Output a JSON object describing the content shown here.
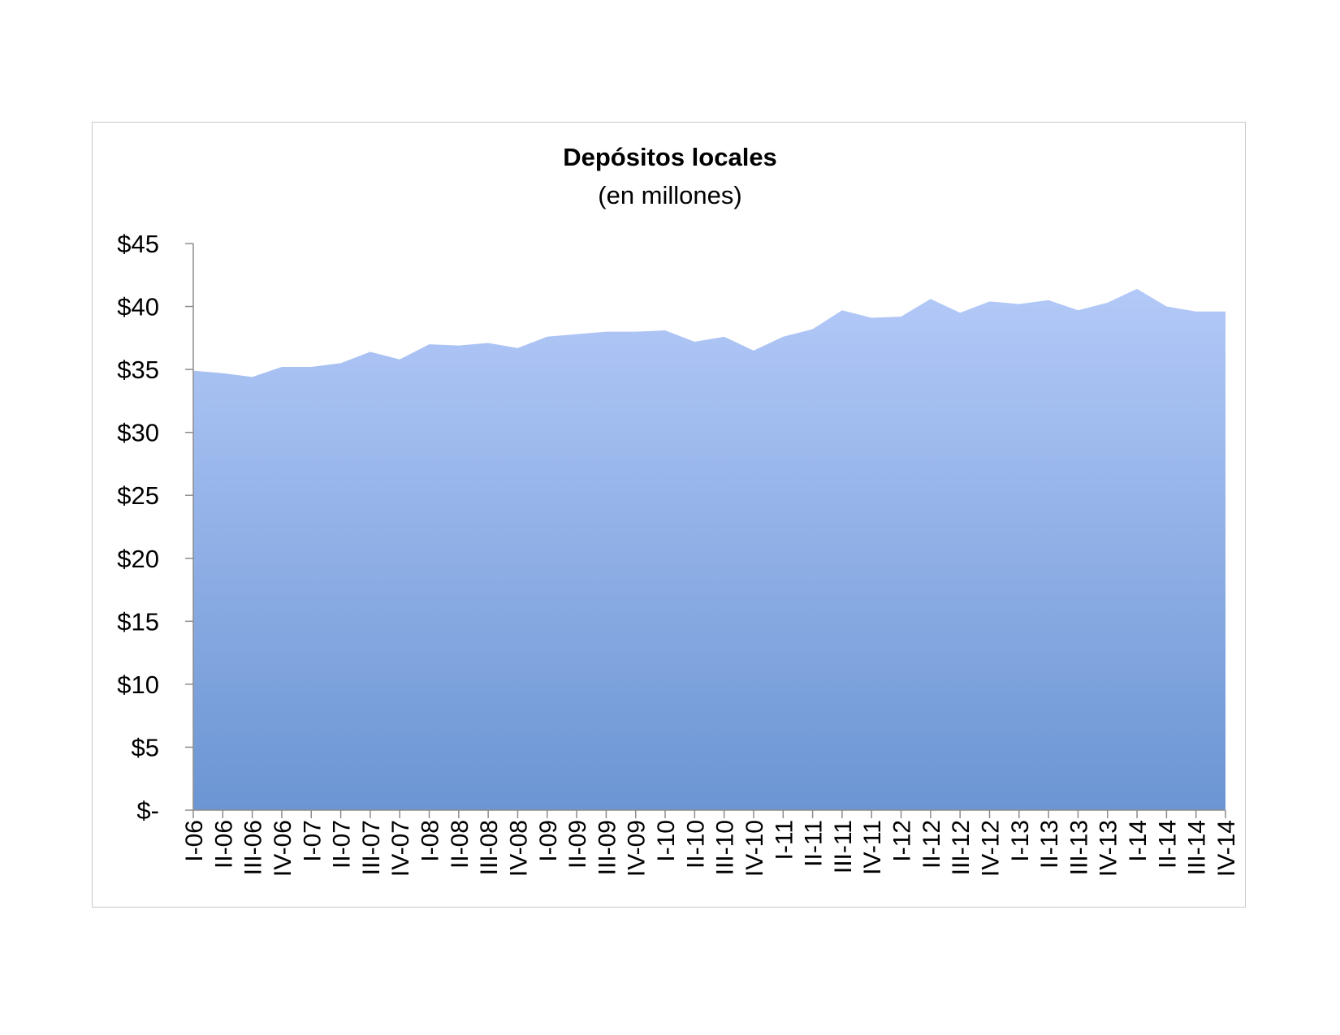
{
  "chart_data": {
    "type": "area",
    "title": "Depósitos locales",
    "subtitle": "(en millones)",
    "xlabel": "",
    "ylabel": "",
    "ylim": [
      0,
      45
    ],
    "yticks": [
      0,
      5,
      10,
      15,
      20,
      25,
      30,
      35,
      40,
      45
    ],
    "ytick_labels": [
      "$-",
      "$5",
      "$10",
      "$15",
      "$20",
      "$25",
      "$30",
      "$35",
      "$40",
      "$45"
    ],
    "grid": false,
    "legend": "none",
    "fill_top_color": "#b3c9f8",
    "fill_bottom_color": "#6b95d3",
    "categories": [
      "I-06",
      "II-06",
      "III-06",
      "IV-06",
      "I-07",
      "II-07",
      "III-07",
      "IV-07",
      "I-08",
      "II-08",
      "III-08",
      "IV-08",
      "I-09",
      "II-09",
      "III-09",
      "IV-09",
      "I-10",
      "II-10",
      "III-10",
      "IV-10",
      "I-11",
      "II-11",
      "III-11",
      "IV-11",
      "I-12",
      "II-12",
      "III-12",
      "IV-12",
      "I-13",
      "II-13",
      "III-13",
      "IV-13",
      "I-14",
      "II-14",
      "III-14",
      "IV-14"
    ],
    "values": [
      34.9,
      34.7,
      34.4,
      35.2,
      35.2,
      35.5,
      36.4,
      35.8,
      37.0,
      36.9,
      37.1,
      36.7,
      37.6,
      37.8,
      38.0,
      38.0,
      38.1,
      37.2,
      37.6,
      36.5,
      37.6,
      38.2,
      39.7,
      39.1,
      39.2,
      40.6,
      39.5,
      40.4,
      40.2,
      40.5,
      39.7,
      40.3,
      41.4,
      40.0,
      39.6,
      39.6
    ]
  }
}
